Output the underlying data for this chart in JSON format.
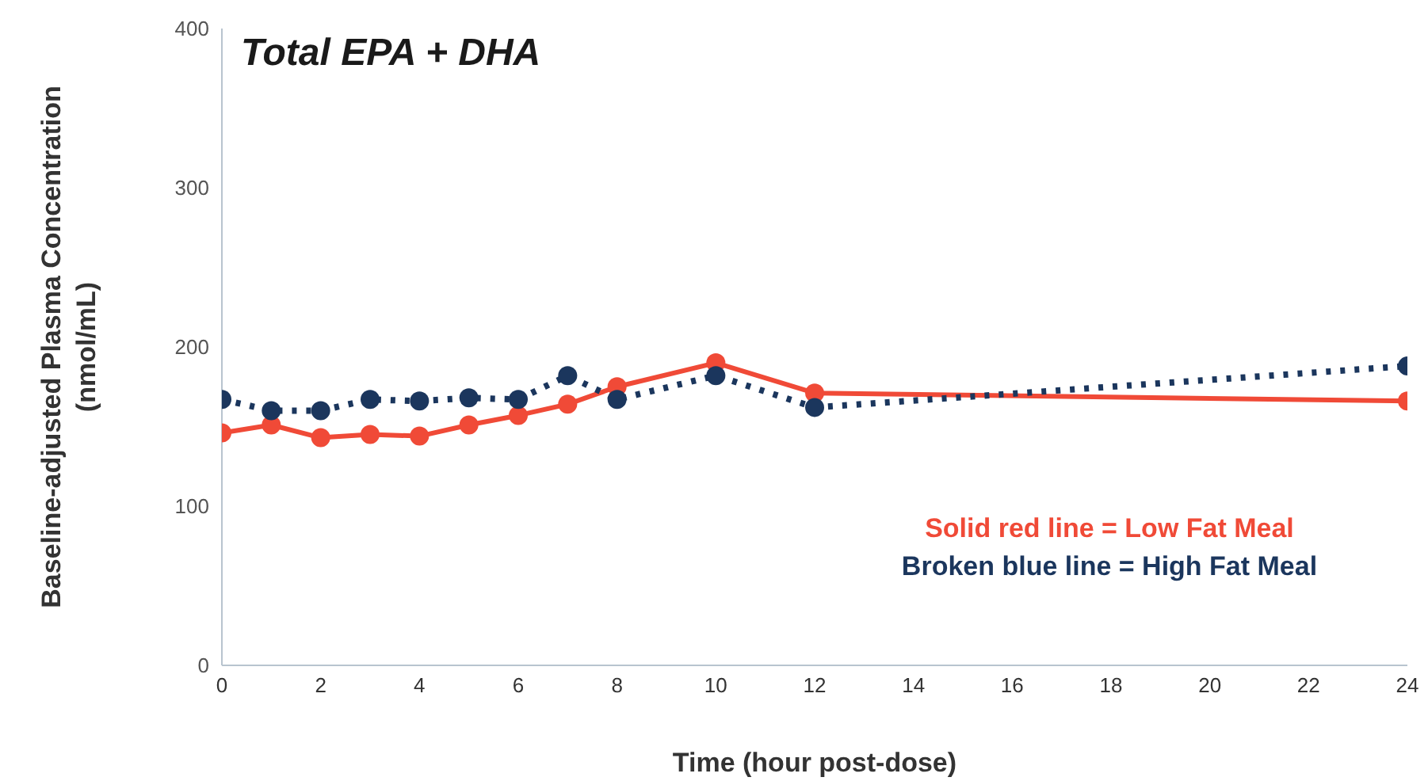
{
  "chart_data": {
    "type": "line",
    "title": "Total EPA + DHA",
    "xlabel": "Time (hour post-dose)",
    "ylabel": "Baseline-adjusted Plasma Concentration (nmol/mL)",
    "x": [
      0,
      1,
      2,
      3,
      4,
      5,
      6,
      7,
      8,
      10,
      12,
      24
    ],
    "series": [
      {
        "name": "Solid red line = Low Fat Meal",
        "color": "#f04a37",
        "line_style": "solid",
        "values": [
          146,
          151,
          143,
          145,
          144,
          151,
          157,
          164,
          175,
          190,
          171,
          166
        ]
      },
      {
        "name": "Broken blue line = High Fat Meal",
        "color": "#1b365d",
        "line_style": "dotted",
        "values": [
          167,
          160,
          160,
          167,
          166,
          168,
          167,
          182,
          167,
          182,
          162,
          188
        ]
      }
    ],
    "xlim": [
      0,
      24
    ],
    "xticks": [
      0,
      2,
      4,
      6,
      8,
      10,
      12,
      14,
      16,
      18,
      20,
      22,
      24
    ],
    "ylim": [
      0,
      400
    ],
    "yticks": [
      0,
      100,
      200,
      300,
      400
    ],
    "legend": "right",
    "marker": "circle"
  }
}
